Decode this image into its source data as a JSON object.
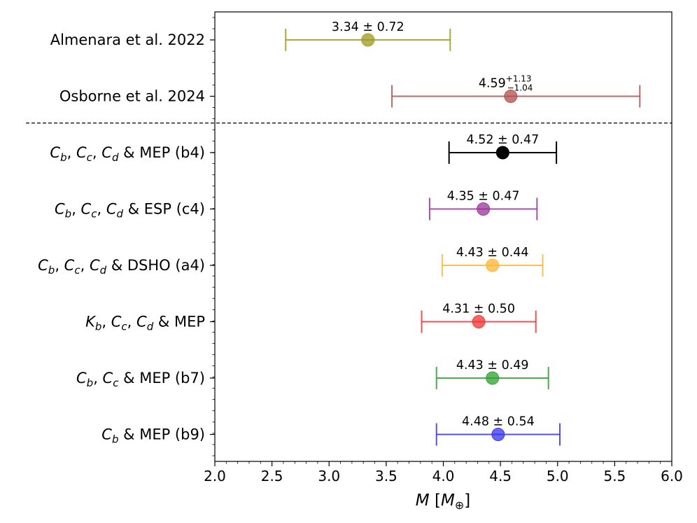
{
  "chart_data": {
    "type": "errorbar",
    "orientation": "horizontal",
    "xlabel": {
      "italic": "M",
      "pre": " [",
      "italic2": "M",
      "sub": "⊕",
      "post": "]"
    },
    "xlim": [
      2.0,
      6.0
    ],
    "xticks": [
      "2.0",
      "2.5",
      "3.0",
      "3.5",
      "4.0",
      "4.5",
      "5.0",
      "5.5",
      "6.0"
    ],
    "separator_after_row": 1,
    "rows": [
      {
        "label": [
          {
            "t": "Almenara et al. 2022"
          }
        ],
        "value": 3.34,
        "err_low": 0.72,
        "err_high": 0.72,
        "value_label": "3.34 ± 0.72",
        "color": "#9b9b1e"
      },
      {
        "label": [
          {
            "t": "Osborne et al. 2024"
          }
        ],
        "value": 4.59,
        "err_low": 1.04,
        "err_high": 1.13,
        "value_label": "4.59",
        "err_sup": "+1.13",
        "err_sub": "−1.04",
        "color": "#b14e4e"
      },
      {
        "label": [
          {
            "t": "C",
            "i": 1
          },
          {
            "t": "b",
            "sub": 1
          },
          {
            "t": ", "
          },
          {
            "t": "C",
            "i": 1
          },
          {
            "t": "c",
            "sub": 1
          },
          {
            "t": ", "
          },
          {
            "t": "C",
            "i": 1
          },
          {
            "t": "d",
            "sub": 1
          },
          {
            "t": " & MEP (b4)"
          }
        ],
        "value": 4.52,
        "err_low": 0.47,
        "err_high": 0.47,
        "value_label": "4.52 ± 0.47",
        "color": "#000000"
      },
      {
        "label": [
          {
            "t": "C",
            "i": 1
          },
          {
            "t": "b",
            "sub": 1
          },
          {
            "t": ", "
          },
          {
            "t": "C",
            "i": 1
          },
          {
            "t": "c",
            "sub": 1
          },
          {
            "t": ", "
          },
          {
            "t": "C",
            "i": 1
          },
          {
            "t": "d",
            "sub": 1
          },
          {
            "t": " & ESP (c4)"
          }
        ],
        "value": 4.35,
        "err_low": 0.47,
        "err_high": 0.47,
        "value_label": "4.35 ± 0.47",
        "color": "#993399"
      },
      {
        "label": [
          {
            "t": "C",
            "i": 1
          },
          {
            "t": "b",
            "sub": 1
          },
          {
            "t": ", "
          },
          {
            "t": "C",
            "i": 1
          },
          {
            "t": "c",
            "sub": 1
          },
          {
            "t": ", "
          },
          {
            "t": "C",
            "i": 1
          },
          {
            "t": "d",
            "sub": 1
          },
          {
            "t": " & DSHO (a4)"
          }
        ],
        "value": 4.43,
        "err_low": 0.44,
        "err_high": 0.44,
        "value_label": "4.43 ± 0.44",
        "color": "#ffb433"
      },
      {
        "label": [
          {
            "t": "K",
            "i": 1
          },
          {
            "t": "b",
            "sub": 1
          },
          {
            "t": ", "
          },
          {
            "t": "C",
            "i": 1
          },
          {
            "t": "c",
            "sub": 1
          },
          {
            "t": ", "
          },
          {
            "t": "C",
            "i": 1
          },
          {
            "t": "d",
            "sub": 1
          },
          {
            "t": " & MEP"
          }
        ],
        "value": 4.31,
        "err_low": 0.5,
        "err_high": 0.5,
        "value_label": "4.31 ± 0.50",
        "color": "#ee3333"
      },
      {
        "label": [
          {
            "t": "C",
            "i": 1
          },
          {
            "t": "b",
            "sub": 1
          },
          {
            "t": ", "
          },
          {
            "t": "C",
            "i": 1
          },
          {
            "t": "c",
            "sub": 1
          },
          {
            "t": " & MEP (b7)"
          }
        ],
        "value": 4.43,
        "err_low": 0.49,
        "err_high": 0.49,
        "value_label": "4.43 ± 0.49",
        "color": "#2ca02c"
      },
      {
        "label": [
          {
            "t": "C",
            "i": 1
          },
          {
            "t": "b",
            "sub": 1
          },
          {
            "t": " & MEP (b9)"
          }
        ],
        "value": 4.48,
        "err_low": 0.54,
        "err_high": 0.54,
        "value_label": "4.48 ± 0.54",
        "color": "#3333ee"
      }
    ]
  }
}
